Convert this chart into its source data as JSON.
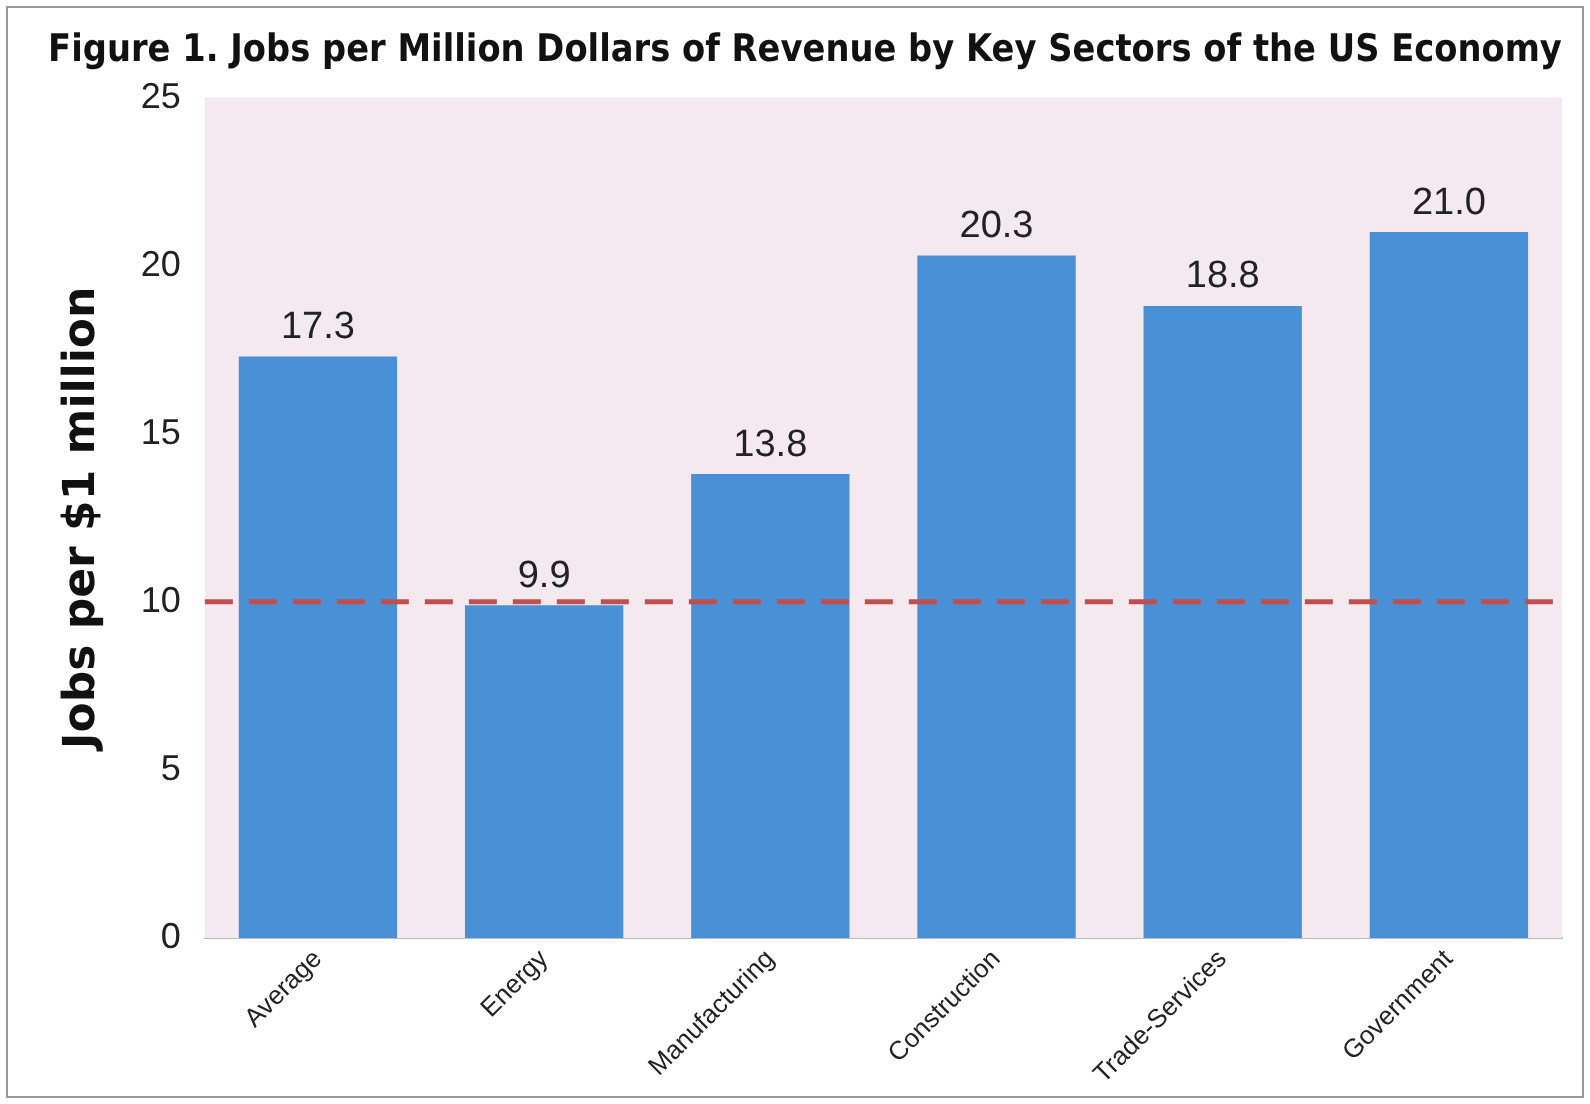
{
  "chart_data": {
    "type": "bar",
    "title": "Figure 1. Jobs per Million Dollars of Revenue by Key Sectors of the US Economy",
    "ylabel": "Jobs per $1 million",
    "categories": [
      "Average",
      "Energy",
      "Manufacturing",
      "Construction",
      "Trade-Services",
      "Government"
    ],
    "values": [
      17.3,
      9.9,
      13.8,
      20.3,
      18.8,
      21.0
    ],
    "color": "#4a90d6",
    "value_labels": [
      "17.3",
      "9.9",
      "13.8",
      "20.3",
      "18.8",
      "21.0"
    ],
    "ylim": [
      0,
      25
    ],
    "yticks": [
      0,
      5,
      10,
      15,
      20,
      25
    ],
    "grid": false,
    "legend": false,
    "ref_lines": [
      {
        "axis": "y",
        "value": 10,
        "color": "#c0504d",
        "line_style": "dashed"
      }
    ]
  }
}
